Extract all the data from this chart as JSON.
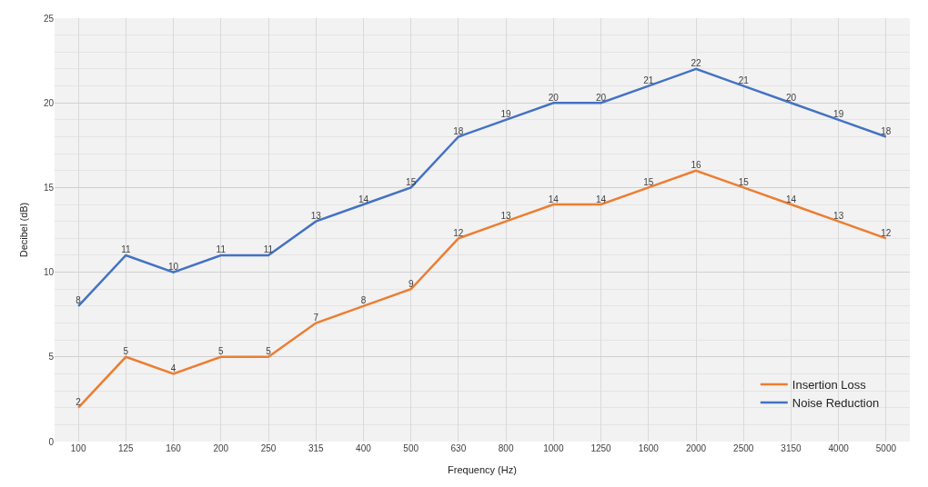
{
  "chart_data": {
    "type": "line",
    "xlabel": "Frequency (Hz)",
    "ylabel": "Decibel (dB)",
    "categories": [
      "100",
      "125",
      "160",
      "200",
      "250",
      "315",
      "400",
      "500",
      "630",
      "800",
      "1000",
      "1250",
      "1600",
      "2000",
      "2500",
      "3150",
      "4000",
      "5000"
    ],
    "series": [
      {
        "name": "Insertion Loss",
        "color": "#ed7d31",
        "values": [
          2,
          5,
          4,
          5,
          5,
          7,
          8,
          9,
          12,
          13,
          14,
          14,
          15,
          16,
          15,
          14,
          13,
          12
        ]
      },
      {
        "name": "Noise Reduction",
        "color": "#4472c4",
        "values": [
          8,
          11,
          10,
          11,
          11,
          13,
          14,
          15,
          18,
          19,
          20,
          20,
          21,
          22,
          21,
          20,
          19,
          18
        ]
      }
    ],
    "ylim": [
      0,
      25
    ],
    "yticks": [
      0,
      5,
      10,
      15,
      20,
      25
    ],
    "grid": true,
    "legend": "bottom right",
    "data_labels": true,
    "marker": "none",
    "line_style": "solid"
  }
}
